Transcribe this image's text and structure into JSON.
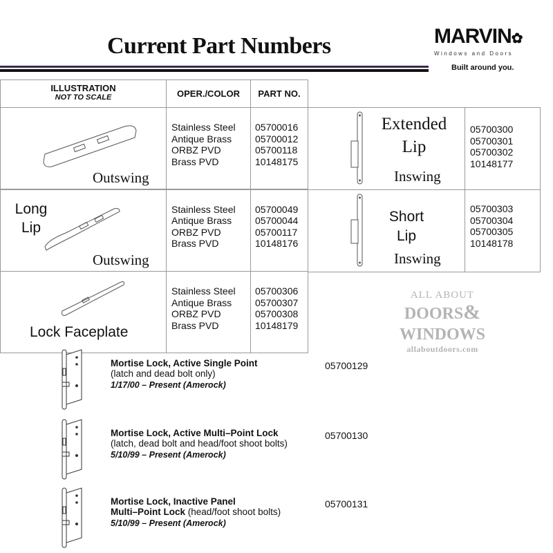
{
  "title": "Current Part Numbers",
  "logo": {
    "brand": "MARVIN",
    "sub": "Windows and Doors",
    "tagline": "Built around you."
  },
  "table": {
    "headers": {
      "illustration": "ILLUSTRATION",
      "not_to_scale": "NOT TO SCALE",
      "oper_color": "OPER./COLOR",
      "part_no": "PART NO."
    },
    "rows": [
      {
        "label": "Outswing",
        "side_label": "",
        "colors": [
          "Stainless Steel",
          "Antique Brass",
          "ORBZ PVD",
          "Brass PVD"
        ],
        "parts": [
          "05700016",
          "05700012",
          "05700118",
          "10148175"
        ]
      },
      {
        "label": "Outswing",
        "side_label": "Long Lip",
        "colors": [
          "Stainless Steel",
          "Antique Brass",
          "ORBZ PVD",
          "Brass PVD"
        ],
        "parts": [
          "05700049",
          "05700044",
          "05700117",
          "10148176"
        ]
      },
      {
        "label": "Lock Faceplate",
        "side_label": "",
        "colors": [
          "Stainless Steel",
          "Antique Brass",
          "ORBZ PVD",
          "Brass PVD"
        ],
        "parts": [
          "05700306",
          "05700307",
          "05700308",
          "10148179"
        ]
      }
    ]
  },
  "right_table": [
    {
      "name": "Extended Lip",
      "swing": "Inswing",
      "parts": [
        "05700300",
        "05700301",
        "05700302",
        "10148177"
      ]
    },
    {
      "name": "Short Lip",
      "swing": "Inswing",
      "parts": [
        "05700303",
        "05700304",
        "05700305",
        "10148178"
      ]
    }
  ],
  "watermark": {
    "line1": "ALL ABOUT",
    "line2": "DOORS",
    "amp": "&",
    "line3": "WINDOWS",
    "url": "allaboutdoors.com"
  },
  "items": [
    {
      "title": "Mortise Lock, Active Single Point",
      "title2": "",
      "sub": "(latch and dead bolt only)",
      "date": "1/17/00 – Present (Amerock)",
      "part": "05700129"
    },
    {
      "title": "Mortise Lock, Active Multi–Point Lock",
      "title2": "",
      "sub": "(latch, dead bolt and head/foot shoot bolts)",
      "date": "5/10/99 – Present (Amerock)",
      "part": "05700130"
    },
    {
      "title": "Mortise Lock, Inactive  Panel",
      "title2": "Multi–Point Lock",
      "sub": " (head/foot shoot bolts)",
      "date": "5/10/99 – Present  (Amerock)",
      "part": "05700131"
    }
  ]
}
